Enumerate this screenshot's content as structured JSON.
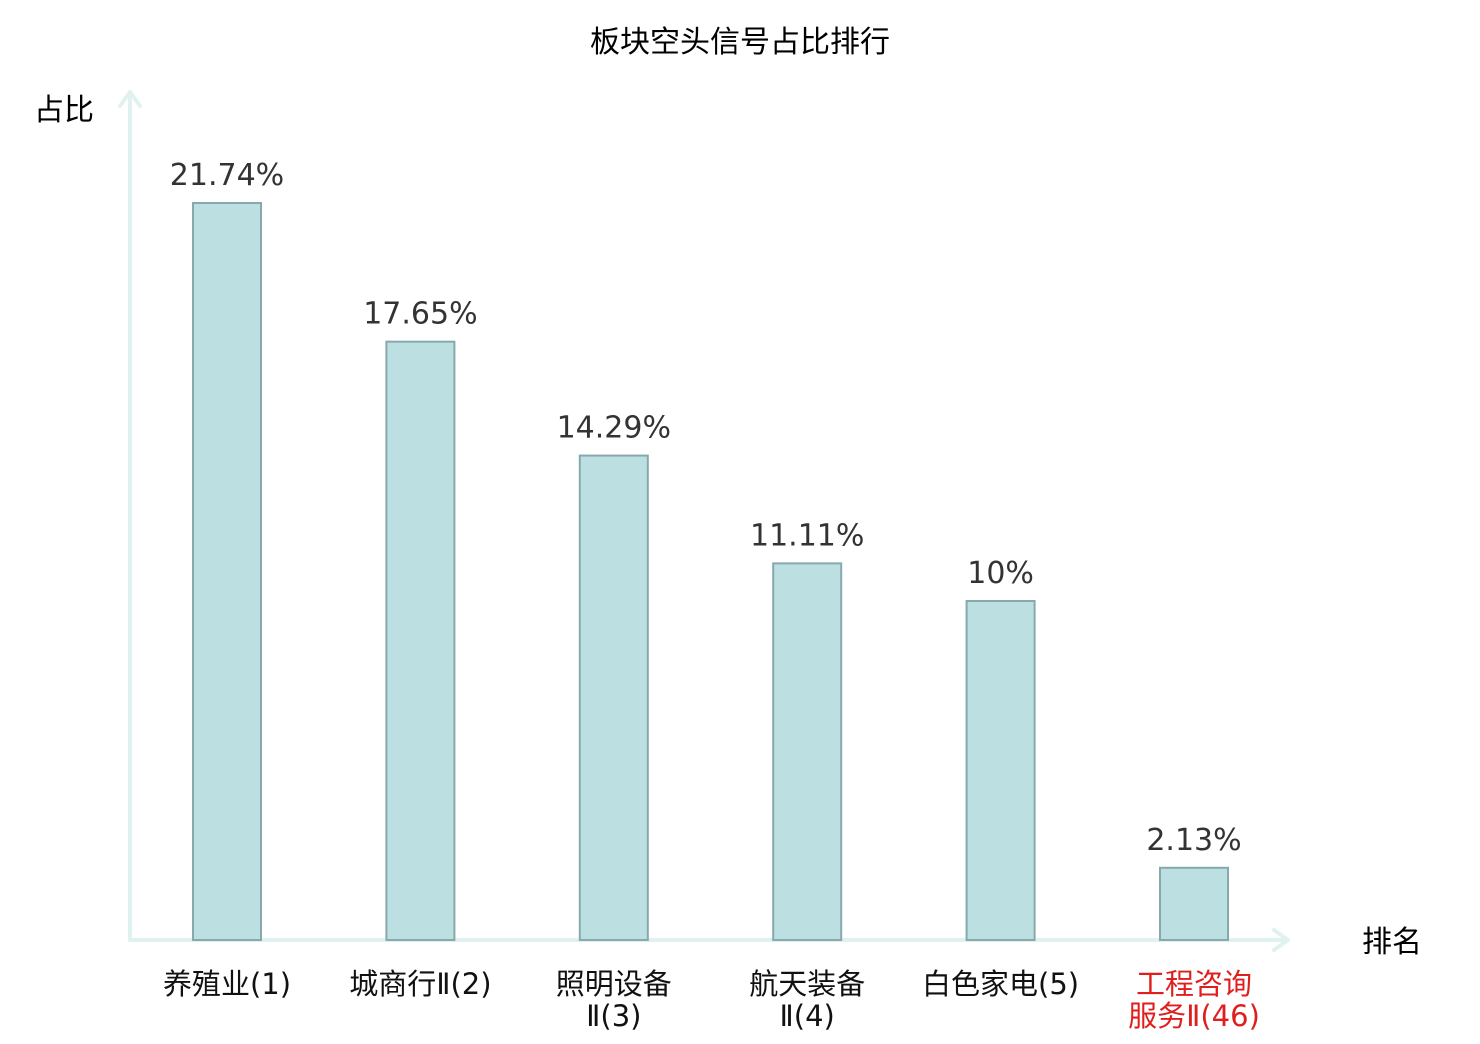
{
  "chart_data": {
    "type": "bar",
    "title": "板块空头信号占比排行",
    "ylabel": "占比",
    "xlabel": "排名",
    "ylim": [
      0,
      25
    ],
    "grid": false,
    "legend": "none",
    "categories": [
      [
        "养殖业(1)"
      ],
      [
        "城商行Ⅱ(2)"
      ],
      [
        "照明设备",
        "Ⅱ(3)"
      ],
      [
        "航天装备",
        "Ⅱ(4)"
      ],
      [
        "白色家电(5)"
      ],
      [
        "工程咨询",
        "服务Ⅱ(46)"
      ]
    ],
    "values": [
      21.74,
      17.65,
      14.29,
      11.11,
      10,
      2.13
    ],
    "value_labels": [
      "21.74%",
      "17.65%",
      "14.29%",
      "11.11%",
      "10%",
      "2.13%"
    ],
    "highlight_index": 5
  },
  "colors": {
    "bar_fill": "#bce0e2",
    "bar_stroke": "#87a8ac",
    "axis": "#e0f2f0",
    "text": "#111111",
    "value_label": "#333333",
    "highlight": "#e01e1e"
  }
}
